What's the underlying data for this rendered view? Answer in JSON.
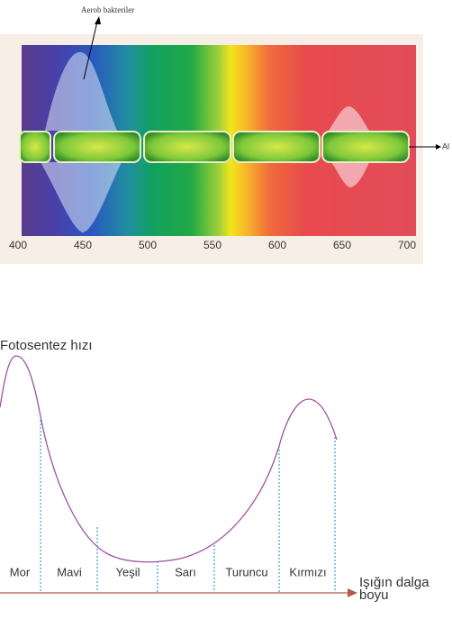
{
  "top": {
    "bacteria_label": "Aerob bakteriler",
    "alga_label": "Al",
    "wavelength_ticks": [
      400,
      450,
      500,
      550,
      600,
      650,
      700
    ]
  },
  "graph": {
    "y_label": "Fotosentez hızı",
    "x_label": "Işığın dalga boyu",
    "bands": [
      "Mor",
      "Mavi",
      "Yeşil",
      "Sarı",
      "Turuncu",
      "Kırmızı"
    ]
  }
}
